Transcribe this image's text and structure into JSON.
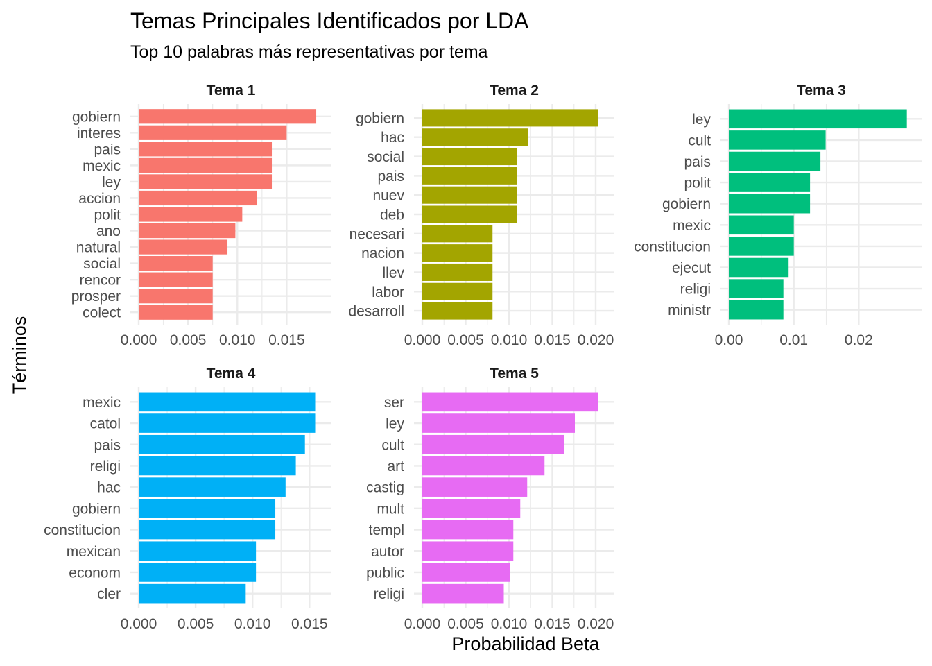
{
  "chart_data": {
    "type": "bar",
    "orientation": "horizontal",
    "title": "Temas Principales Identificados por LDA",
    "subtitle": "Top 10 palabras más representativas por tema",
    "xlabel": "Probabilidad Beta",
    "ylabel": "Términos",
    "grid": true,
    "legend": "none",
    "panels": [
      {
        "name": "Tema 1",
        "color": "#F8766D",
        "xlim": [
          0,
          0.0187
        ],
        "ticks": [
          "0.000",
          "0.005",
          "0.010",
          "0.015"
        ],
        "tick_values": [
          0,
          0.005,
          0.01,
          0.015
        ],
        "categories": [
          "gobiern",
          "interes",
          "pais",
          "mexic",
          "ley",
          "accion",
          "polit",
          "ano",
          "natural",
          "social",
          "rencor",
          "prosper",
          "colect"
        ],
        "values": [
          0.018,
          0.015,
          0.0135,
          0.0135,
          0.0135,
          0.012,
          0.0105,
          0.0098,
          0.009,
          0.0075,
          0.0075,
          0.0075,
          0.0075
        ]
      },
      {
        "name": "Tema 2",
        "color": "#A3A500",
        "xlim": [
          0,
          0.0212
        ],
        "ticks": [
          "0.000",
          "0.005",
          "0.010",
          "0.015",
          "0.020"
        ],
        "tick_values": [
          0,
          0.005,
          0.01,
          0.015,
          0.02
        ],
        "categories": [
          "gobiern",
          "hac",
          "social",
          "pais",
          "nuev",
          "deb",
          "necesari",
          "nacion",
          "llev",
          "labor",
          "desarroll"
        ],
        "values": [
          0.0203,
          0.0122,
          0.0109,
          0.0109,
          0.0109,
          0.0109,
          0.0081,
          0.0081,
          0.0081,
          0.0081,
          0.0081
        ]
      },
      {
        "name": "Tema 3",
        "color": "#00BF7D",
        "xlim": [
          0,
          0.0285
        ],
        "ticks": [
          "0.00",
          "0.01",
          "0.02"
        ],
        "tick_values": [
          0,
          0.01,
          0.02
        ],
        "categories": [
          "ley",
          "cult",
          "pais",
          "polit",
          "gobiern",
          "mexic",
          "constitucion",
          "ejecut",
          "religi",
          "ministr"
        ],
        "values": [
          0.0274,
          0.0149,
          0.0141,
          0.0125,
          0.0125,
          0.01,
          0.01,
          0.0092,
          0.0084,
          0.0084
        ]
      },
      {
        "name": "Tema 4",
        "color": "#00B0F6",
        "xlim": [
          0,
          0.0162
        ],
        "ticks": [
          "0.000",
          "0.005",
          "0.010",
          "0.015"
        ],
        "tick_values": [
          0,
          0.005,
          0.01,
          0.015
        ],
        "categories": [
          "mexic",
          "catol",
          "pais",
          "religi",
          "hac",
          "gobiern",
          "constitucion",
          "mexican",
          "econom",
          "cler"
        ],
        "values": [
          0.0155,
          0.0155,
          0.0146,
          0.0138,
          0.0129,
          0.012,
          0.012,
          0.0103,
          0.0103,
          0.0094
        ]
      },
      {
        "name": "Tema 5",
        "color": "#E76BF3",
        "xlim": [
          0,
          0.0212
        ],
        "ticks": [
          "0.000",
          "0.005",
          "0.010",
          "0.015",
          "0.020"
        ],
        "tick_values": [
          0,
          0.005,
          0.01,
          0.015,
          0.02
        ],
        "categories": [
          "ser",
          "ley",
          "cult",
          "art",
          "castig",
          "mult",
          "templ",
          "autor",
          "public",
          "religi"
        ],
        "values": [
          0.0203,
          0.0176,
          0.0164,
          0.0141,
          0.0121,
          0.0113,
          0.0105,
          0.0105,
          0.0101,
          0.0094
        ]
      }
    ]
  }
}
